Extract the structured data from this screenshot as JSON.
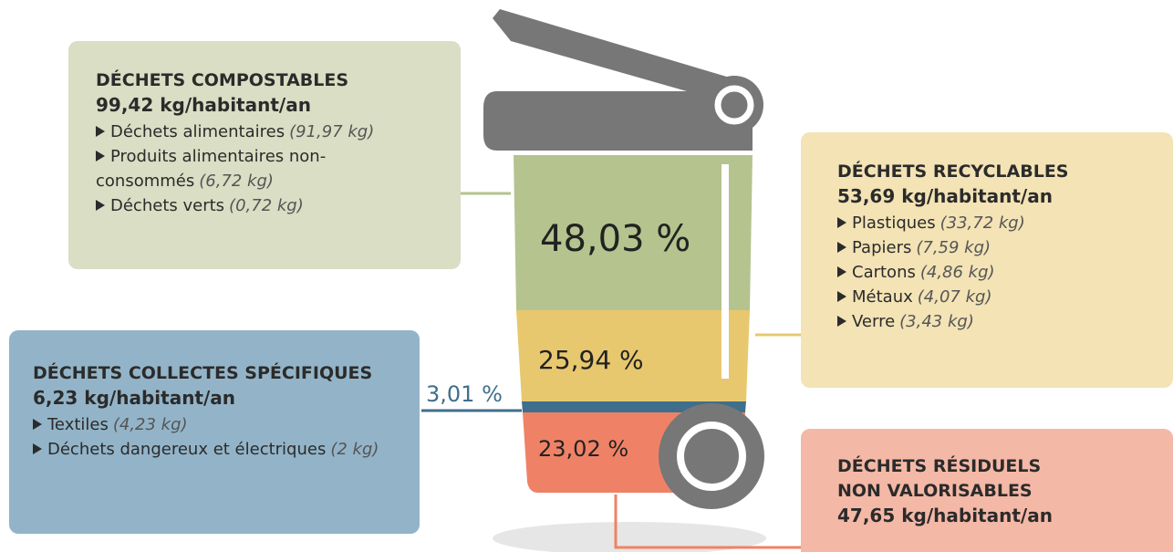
{
  "groups": [
    {
      "title": "DÉCHETS COMPOSTABLES",
      "amount": "99,42 kg/habitant/an",
      "share": "48,03 %",
      "items": [
        {
          "label": "Déchets alimentaires",
          "qty": "(91,97 kg)"
        },
        {
          "label": "Produits alimentaires non-consommés",
          "qty": "(6,72 kg)"
        },
        {
          "label": "Déchets verts",
          "qty": "(0,72 kg)"
        }
      ]
    },
    {
      "title": "DÉCHETS RECYCLABLES",
      "amount": "53,69 kg/habitant/an",
      "share": "25,94 %",
      "items": [
        {
          "label": "Plastiques",
          "qty": "(33,72 kg)"
        },
        {
          "label": "Papiers",
          "qty": "(7,59 kg)"
        },
        {
          "label": "Cartons",
          "qty": "(4,86 kg)"
        },
        {
          "label": "Métaux",
          "qty": "(4,07 kg)"
        },
        {
          "label": "Verre",
          "qty": "(3,43 kg)"
        }
      ]
    },
    {
      "title": "DÉCHETS COLLECTES SPÉCIFIQUES",
      "amount": "6,23 kg/habitant/an",
      "share": "3,01 %",
      "items": [
        {
          "label": "Textiles",
          "qty": "(4,23 kg)"
        },
        {
          "label": "Déchets dangereux et électriques",
          "qty": "(2 kg)"
        }
      ]
    },
    {
      "title": "DÉCHETS RÉSIDUELS NON VALORISABLES",
      "amount": "47,65 kg/habitant/an",
      "share": "23,02 %",
      "items": []
    }
  ]
}
